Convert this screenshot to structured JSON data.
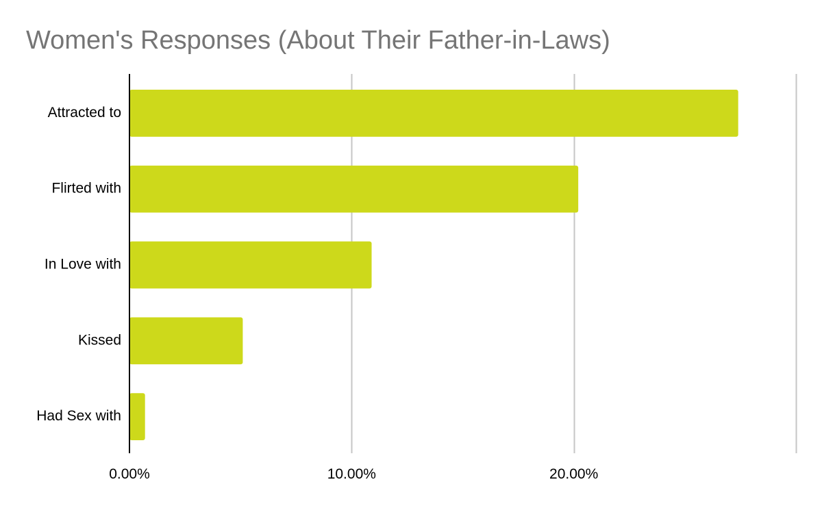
{
  "chart_data": {
    "type": "bar",
    "orientation": "horizontal",
    "title": "Women's Responses (About Their Father-in-Laws)",
    "xlabel": "",
    "ylabel": "",
    "categories": [
      "Attracted to",
      "Flirted with",
      "In Love with",
      "Kissed",
      "Had Sex with"
    ],
    "values": [
      27.4,
      20.2,
      10.9,
      5.1,
      0.7
    ],
    "value_unit": "percent",
    "xlim": [
      0,
      30
    ],
    "x_ticks": [
      0,
      10,
      20,
      30
    ],
    "x_tick_labels": [
      "0.00%",
      "10.00%",
      "20.00%",
      ""
    ],
    "grid": true,
    "legend": "none",
    "bar_color": "#cdd91b",
    "grid_color": "#c6c6c6",
    "axis_color": "#000000",
    "title_color": "#757575"
  }
}
